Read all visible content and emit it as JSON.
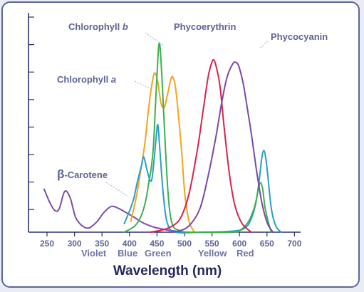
{
  "chart_data": {
    "type": "line",
    "xlabel": "Wavelength (nm)",
    "tick_labels": [
      "250",
      "300",
      "350",
      "400",
      "450",
      "500",
      "550",
      "600",
      "650",
      "700"
    ],
    "axis_tick_labels_shown": [
      "250",
      "300",
      "350",
      "400",
      "450",
      "500",
      "550",
      "600",
      "650",
      "700"
    ],
    "x_ticks_printed": [
      "250",
      "300",
      "350",
      "400",
      "450",
      "500",
      "550",
      "600",
      "650",
      "700"
    ],
    "color_band_labels": [
      "Violet",
      "Blue",
      "Green",
      "Yellow",
      "Red"
    ],
    "ylim": [
      0,
      1
    ],
    "y_tick_labels_shown": false,
    "grid": false,
    "legend": "none (series labeled directly on the chart)",
    "series": [
      {
        "name": "β-Carotene",
        "label": {
          "prefix": "β",
          "suffix": "-Carotene"
        },
        "color": "#7b4fa6",
        "points": [
          [
            252,
            0.2
          ],
          [
            262,
            0.14
          ],
          [
            272,
            0.1
          ],
          [
            280,
            0.11
          ],
          [
            290,
            0.19
          ],
          [
            300,
            0.16
          ],
          [
            310,
            0.07
          ],
          [
            322,
            0.03
          ],
          [
            335,
            0.02
          ],
          [
            350,
            0.05
          ],
          [
            362,
            0.09
          ],
          [
            376,
            0.12
          ],
          [
            390,
            0.11
          ],
          [
            404,
            0.09
          ],
          [
            418,
            0.07
          ],
          [
            430,
            0.05
          ],
          [
            442,
            0.035
          ],
          [
            460,
            0.02
          ],
          [
            480,
            0.01
          ],
          [
            500,
            0.003
          ]
        ]
      },
      {
        "name": "Chlorophyll b",
        "label": {
          "prefix": "Chlorophyll ",
          "suffix": "b"
        },
        "color": "#f2a51a",
        "points": [
          [
            412,
            0.05
          ],
          [
            422,
            0.16
          ],
          [
            430,
            0.28
          ],
          [
            438,
            0.41
          ],
          [
            444,
            0.55
          ],
          [
            450,
            0.67
          ],
          [
            456,
            0.74
          ],
          [
            462,
            0.7
          ],
          [
            468,
            0.6
          ],
          [
            474,
            0.58
          ],
          [
            480,
            0.64
          ],
          [
            486,
            0.71
          ],
          [
            490,
            0.72
          ],
          [
            495,
            0.67
          ],
          [
            500,
            0.55
          ],
          [
            506,
            0.38
          ],
          [
            512,
            0.18
          ],
          [
            520,
            0.05
          ],
          [
            530,
            0.0
          ]
        ]
      },
      {
        "name": "Chlorophyll a",
        "label": {
          "prefix": "Chlorophyll ",
          "suffix": "a"
        },
        "color": "#2a9dc4",
        "points": [
          [
            400,
            0.04
          ],
          [
            410,
            0.1
          ],
          [
            418,
            0.16
          ],
          [
            424,
            0.23
          ],
          [
            432,
            0.31
          ],
          [
            436,
            0.35
          ],
          [
            442,
            0.29
          ],
          [
            448,
            0.24
          ],
          [
            452,
            0.26
          ],
          [
            458,
            0.41
          ],
          [
            462,
            0.5
          ],
          [
            466,
            0.38
          ],
          [
            472,
            0.18
          ],
          [
            480,
            0.04
          ],
          [
            495,
            0.0
          ],
          [
            540,
            0.0
          ],
          [
            590,
            0.003
          ],
          [
            615,
            0.01
          ],
          [
            628,
            0.03
          ],
          [
            636,
            0.07
          ],
          [
            640,
            0.1
          ],
          [
            645,
            0.16
          ],
          [
            650,
            0.25
          ],
          [
            654,
            0.34
          ],
          [
            658,
            0.38
          ],
          [
            662,
            0.34
          ],
          [
            666,
            0.25
          ],
          [
            672,
            0.11
          ],
          [
            680,
            0.03
          ],
          [
            690,
            0.0
          ]
        ]
      },
      {
        "name": "",
        "color": "#3cb04f",
        "points": [
          [
            400,
            0.0
          ],
          [
            420,
            0.03
          ],
          [
            432,
            0.08
          ],
          [
            440,
            0.15
          ],
          [
            446,
            0.24
          ],
          [
            450,
            0.3
          ],
          [
            454,
            0.4
          ],
          [
            458,
            0.6
          ],
          [
            462,
            0.8
          ],
          [
            465,
            0.88
          ],
          [
            468,
            0.8
          ],
          [
            472,
            0.6
          ],
          [
            476,
            0.4
          ],
          [
            480,
            0.22
          ],
          [
            484,
            0.1
          ],
          [
            490,
            0.03
          ],
          [
            500,
            0.01
          ],
          [
            520,
            0.0
          ],
          [
            600,
            0.0
          ],
          [
            615,
            0.01
          ],
          [
            630,
            0.05
          ],
          [
            640,
            0.11
          ],
          [
            645,
            0.16
          ],
          [
            648,
            0.2
          ],
          [
            652,
            0.23
          ],
          [
            656,
            0.2
          ],
          [
            660,
            0.12
          ],
          [
            666,
            0.05
          ],
          [
            672,
            0.0
          ]
        ]
      },
      {
        "name": "Phycoerythrin",
        "label": {
          "prefix": "Phycoerythrin",
          "suffix": ""
        },
        "color": "#d8234a",
        "points": [
          [
            448,
            0.0
          ],
          [
            470,
            0.01
          ],
          [
            490,
            0.03
          ],
          [
            505,
            0.07
          ],
          [
            520,
            0.18
          ],
          [
            535,
            0.38
          ],
          [
            545,
            0.55
          ],
          [
            555,
            0.72
          ],
          [
            562,
            0.79
          ],
          [
            566,
            0.8
          ],
          [
            570,
            0.77
          ],
          [
            577,
            0.68
          ],
          [
            585,
            0.48
          ],
          [
            595,
            0.26
          ],
          [
            605,
            0.12
          ],
          [
            618,
            0.04
          ],
          [
            635,
            0.0
          ]
        ]
      },
      {
        "name": "Phycocyanin",
        "label": {
          "prefix": "Phycocyanin",
          "suffix": ""
        },
        "color": "#7a48a8",
        "points": [
          [
            480,
            0.0
          ],
          [
            500,
            0.005
          ],
          [
            520,
            0.03
          ],
          [
            540,
            0.11
          ],
          [
            555,
            0.26
          ],
          [
            570,
            0.45
          ],
          [
            580,
            0.6
          ],
          [
            590,
            0.72
          ],
          [
            600,
            0.78
          ],
          [
            606,
            0.79
          ],
          [
            612,
            0.77
          ],
          [
            620,
            0.69
          ],
          [
            628,
            0.57
          ],
          [
            636,
            0.44
          ],
          [
            645,
            0.28
          ],
          [
            655,
            0.13
          ],
          [
            665,
            0.04
          ],
          [
            675,
            0.0
          ]
        ]
      }
    ],
    "annotations": [
      {
        "series": "β-Carotene",
        "text": "β-Carotene"
      },
      {
        "series": "Chlorophyll a",
        "text": "Chlorophyll a"
      },
      {
        "series": "Chlorophyll b",
        "text": "Chlorophyll b"
      },
      {
        "series": "Phycoerythrin",
        "text": "Phycoerythrin"
      },
      {
        "series": "Phycocyanin",
        "text": "Phycocyanin"
      }
    ]
  },
  "labels": {
    "xlabel": "Wavelength (nm)",
    "band_violet": "Violet",
    "band_blue": "Blue",
    "band_green": "Green",
    "band_yellow": "Yellow",
    "band_red": "Red",
    "beta_prefix": "β",
    "beta_suffix": "-Carotene",
    "chl_b_prefix": "Chlorophyll ",
    "chl_b_suffix": "b",
    "chl_a_prefix": "Chlorophyll ",
    "chl_a_suffix": "a",
    "phycoerythrin": "Phycoerythrin",
    "phycocyanin": "Phycocyanin"
  },
  "colors": {
    "frame": "#5d6598",
    "axis": "#2d3170",
    "text_muted": "#6e74a3",
    "title": "#25285a"
  }
}
